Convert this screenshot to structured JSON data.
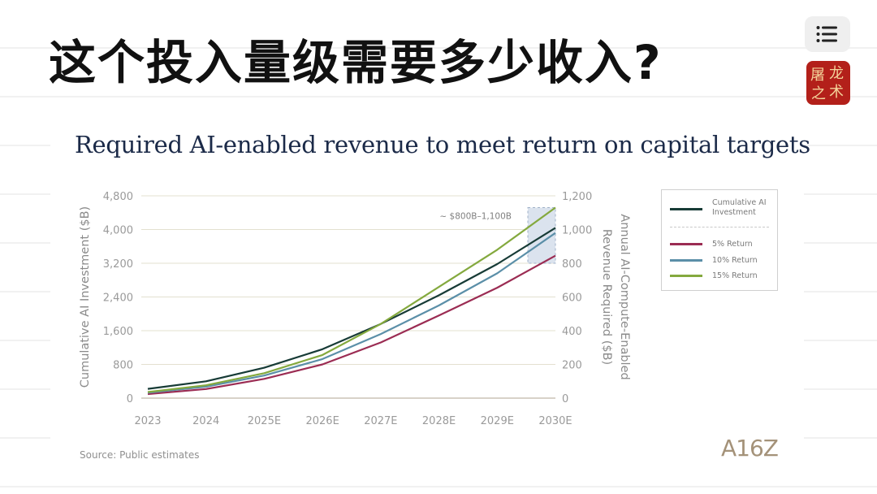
{
  "slide": {
    "title": "这个投入量级需要多少收入?"
  },
  "avatar": {
    "chars": [
      "屠",
      "龙",
      "之",
      "术"
    ],
    "bg": "#b3201a"
  },
  "icons": {
    "menu": "menu-icon"
  },
  "chart_data": {
    "type": "line",
    "title": "Required AI-enabled revenue to meet return on capital targets",
    "categories": [
      "2023",
      "2024",
      "2025E",
      "2026E",
      "2027E",
      "2028E",
      "2029E",
      "2030E"
    ],
    "y_left": {
      "label": "Cumulative AI Investment ($B)",
      "ticks": [
        "0",
        "800",
        "1,600",
        "2,400",
        "3,200",
        "4,000",
        "4,800"
      ],
      "range": [
        0,
        4800
      ]
    },
    "y_right": {
      "label": "Annual AI-Compute-Enabled Revenue Required ($B)",
      "ticks": [
        "0",
        "200",
        "400",
        "600",
        "800",
        "1,000",
        "1,200"
      ],
      "range": [
        0,
        1200
      ]
    },
    "series": [
      {
        "name": "Cumulative AI Investment",
        "axis": "left",
        "color": "#173b36",
        "values": [
          220,
          400,
          720,
          1160,
          1760,
          2440,
          3180,
          4040
        ]
      },
      {
        "name": "5% Return",
        "axis": "right",
        "color": "#9b2c53",
        "values": [
          24,
          54,
          114,
          200,
          330,
          490,
          655,
          845
        ]
      },
      {
        "name": "10% Return",
        "axis": "right",
        "color": "#5b8fa8",
        "values": [
          32,
          68,
          134,
          232,
          380,
          550,
          740,
          980
        ]
      },
      {
        "name": "15% Return",
        "axis": "right",
        "color": "#84a93e",
        "values": [
          36,
          76,
          148,
          256,
          440,
          660,
          880,
          1130
        ]
      }
    ],
    "annotation": {
      "text": "~ $800B–1,100B",
      "x": "2030E",
      "y_range": [
        800,
        1130
      ],
      "axis": "right",
      "fill": "#dbe3ee"
    },
    "legend": {
      "position": "right",
      "items": [
        {
          "label": "Cumulative AI Investment",
          "color": "#173b36"
        },
        {
          "label": "5% Return",
          "color": "#9b2c53"
        },
        {
          "label": "10% Return",
          "color": "#5b8fa8"
        },
        {
          "label": "15% Return",
          "color": "#84a93e"
        }
      ]
    },
    "grid": true,
    "source": "Source: Public estimates",
    "logo": "A16Z"
  }
}
